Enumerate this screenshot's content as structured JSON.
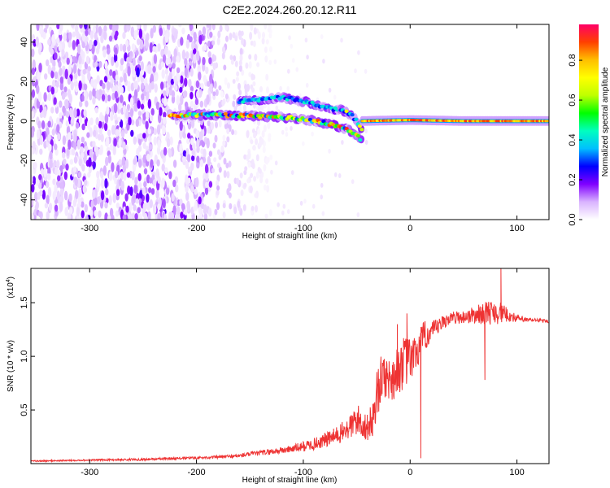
{
  "chart_data": [
    {
      "type": "heatmap",
      "title": "C2E2.2024.260.20.12.R11",
      "xlabel": "Height of straight line (km)",
      "ylabel": "Frequency (Hz)",
      "xlim": [
        -355,
        130
      ],
      "ylim": [
        -50,
        49
      ],
      "xticks": [
        -300,
        -200,
        -100,
        0,
        100
      ],
      "yticks": [
        -40,
        -20,
        0,
        20,
        40
      ],
      "colorbar": {
        "label": "Normalized spectral amplitude",
        "range": [
          0,
          0.98
        ],
        "ticks": [
          "0.0",
          "0.2",
          "0.4",
          "0.6",
          "0.8"
        ],
        "colors": [
          "#ffffff",
          "#d9b3ff",
          "#8000ff",
          "#0000ff",
          "#00bfff",
          "#00ffbf",
          "#00ff00",
          "#bfff00",
          "#ffff00",
          "#ffbf00",
          "#ff4000",
          "#ff0066"
        ]
      },
      "features": [
        {
          "name": "broadband noise",
          "x_range": [
            -355,
            -185
          ],
          "amplitude": 0.1
        },
        {
          "name": "fading noise",
          "x_range": [
            -185,
            -130
          ],
          "amplitude": 0.05
        },
        {
          "name": "main band",
          "x": [
            -225,
            -200,
            -175,
            -150,
            -125,
            -100,
            -80,
            -60,
            -50,
            -45
          ],
          "freq": [
            3,
            3,
            3,
            2.5,
            2,
            1,
            -1,
            -4,
            -7,
            -10
          ],
          "peak_amplitude": 0.9
        },
        {
          "name": "upper branch",
          "x": [
            -160,
            -140,
            -120,
            -100,
            -85,
            -70,
            -60
          ],
          "freq": [
            10,
            11,
            12,
            10,
            8,
            6,
            5
          ],
          "amplitude": 0.4
        },
        {
          "name": "steep branch",
          "x": [
            -65,
            -55,
            -50,
            -45
          ],
          "freq": [
            6,
            3,
            0,
            -5
          ],
          "amplitude": 0.7
        },
        {
          "name": "stable line",
          "x": [
            -45,
            0,
            50,
            100,
            130
          ],
          "freq": [
            0,
            0.5,
            0,
            0,
            0
          ],
          "peak_amplitude": 0.95
        }
      ]
    },
    {
      "type": "line",
      "xlabel": "Height of straight line (km)",
      "ylabel": "SNR (10 * v/v)",
      "y_multiplier": "(x10",
      "y_multiplier_exp": "4",
      "xlim": [
        -355,
        130
      ],
      "ylim": [
        0,
        18200
      ],
      "xticks": [
        -300,
        -200,
        -100,
        0,
        100
      ],
      "yticks": [
        5000,
        10000,
        15000
      ],
      "ytick_labels": [
        "0.5",
        "1.0",
        "1.5"
      ],
      "color": "#ee3333",
      "x": [
        -355,
        -300,
        -250,
        -215,
        -200,
        -180,
        -160,
        -150,
        -140,
        -130,
        -120,
        -110,
        -100,
        -90,
        -80,
        -70,
        -60,
        -55,
        -50,
        -45,
        -40,
        -35,
        -30,
        -25,
        -20,
        -15,
        -10,
        -5,
        0,
        5,
        10,
        15,
        20,
        25,
        30,
        35,
        40,
        50,
        60,
        70,
        80,
        90,
        100,
        110,
        120,
        130
      ],
      "y": [
        200,
        300,
        350,
        450,
        500,
        550,
        650,
        800,
        900,
        1000,
        1100,
        1250,
        1400,
        1600,
        1900,
        2200,
        2700,
        3000,
        3500,
        3200,
        2800,
        3500,
        6000,
        7500,
        7000,
        7200,
        8000,
        8500,
        8800,
        9500,
        10500,
        11500,
        11800,
        12300,
        12800,
        13200,
        13400,
        13400,
        13500,
        13600,
        13700,
        13600,
        13400,
        13300,
        13300,
        13200
      ],
      "noise": [
        100,
        100,
        150,
        150,
        150,
        200,
        250,
        300,
        350,
        400,
        450,
        500,
        700,
        800,
        1000,
        1200,
        1500,
        1800,
        2200,
        2000,
        1800,
        2500,
        3500,
        3000,
        3000,
        3000,
        3500,
        3500,
        3000,
        2500,
        2500,
        2000,
        1500,
        1200,
        1000,
        900,
        800,
        900,
        1200,
        1500,
        1800,
        1000,
        500,
        300,
        250,
        200
      ],
      "spikes": [
        {
          "x": 85,
          "y": 18200
        },
        {
          "x": 10,
          "y": 500
        },
        {
          "x": 70,
          "y": 7800
        },
        {
          "x": -12,
          "y": 13000
        },
        {
          "x": -3,
          "y": 14000
        }
      ]
    }
  ]
}
